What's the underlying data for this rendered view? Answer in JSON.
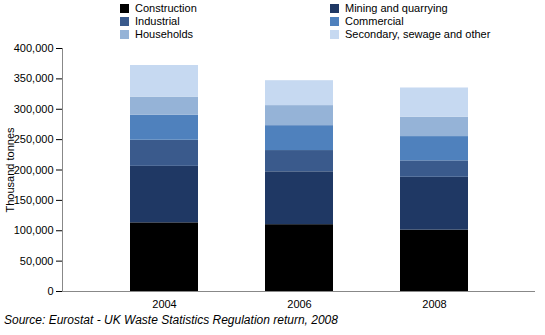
{
  "chart_data": {
    "type": "bar",
    "stacked": true,
    "categories": [
      "2004",
      "2006",
      "2008"
    ],
    "series": [
      {
        "name": "Construction",
        "color": "#000000",
        "values": [
          113000,
          110000,
          101000
        ]
      },
      {
        "name": "Mining and quarrying",
        "color": "#1f3864",
        "values": [
          93000,
          87000,
          87000
        ]
      },
      {
        "name": "Industrial",
        "color": "#3a5a8c",
        "values": [
          43000,
          35000,
          27000
        ]
      },
      {
        "name": "Commercial",
        "color": "#4f81bd",
        "values": [
          41000,
          41000,
          40000
        ]
      },
      {
        "name": "Households",
        "color": "#95b3d7",
        "values": [
          30000,
          33000,
          32000
        ]
      },
      {
        "name": "Secondary, sewage and other",
        "color": "#c6d9f1",
        "values": [
          52000,
          41000,
          48000
        ]
      }
    ],
    "y_label": "Thousand tonnes",
    "ylim": [
      0,
      400000
    ],
    "yticks": [
      0,
      {
        "value": 50000,
        "label": "50,000"
      },
      {
        "value": 100000,
        "label": "100,000"
      },
      {
        "value": 150000,
        "label": "150,000"
      },
      {
        "value": 200000,
        "label": "200,000"
      },
      {
        "value": 250000,
        "label": "250,000"
      },
      {
        "value": 300000,
        "label": "300,000"
      },
      {
        "value": 350000,
        "label": "350,000"
      },
      {
        "value": 400000,
        "label": "400,000"
      }
    ],
    "grid": false,
    "legend": "top",
    "source": "Source: Eurostat - UK Waste Statistics Regulation return, 2008"
  }
}
